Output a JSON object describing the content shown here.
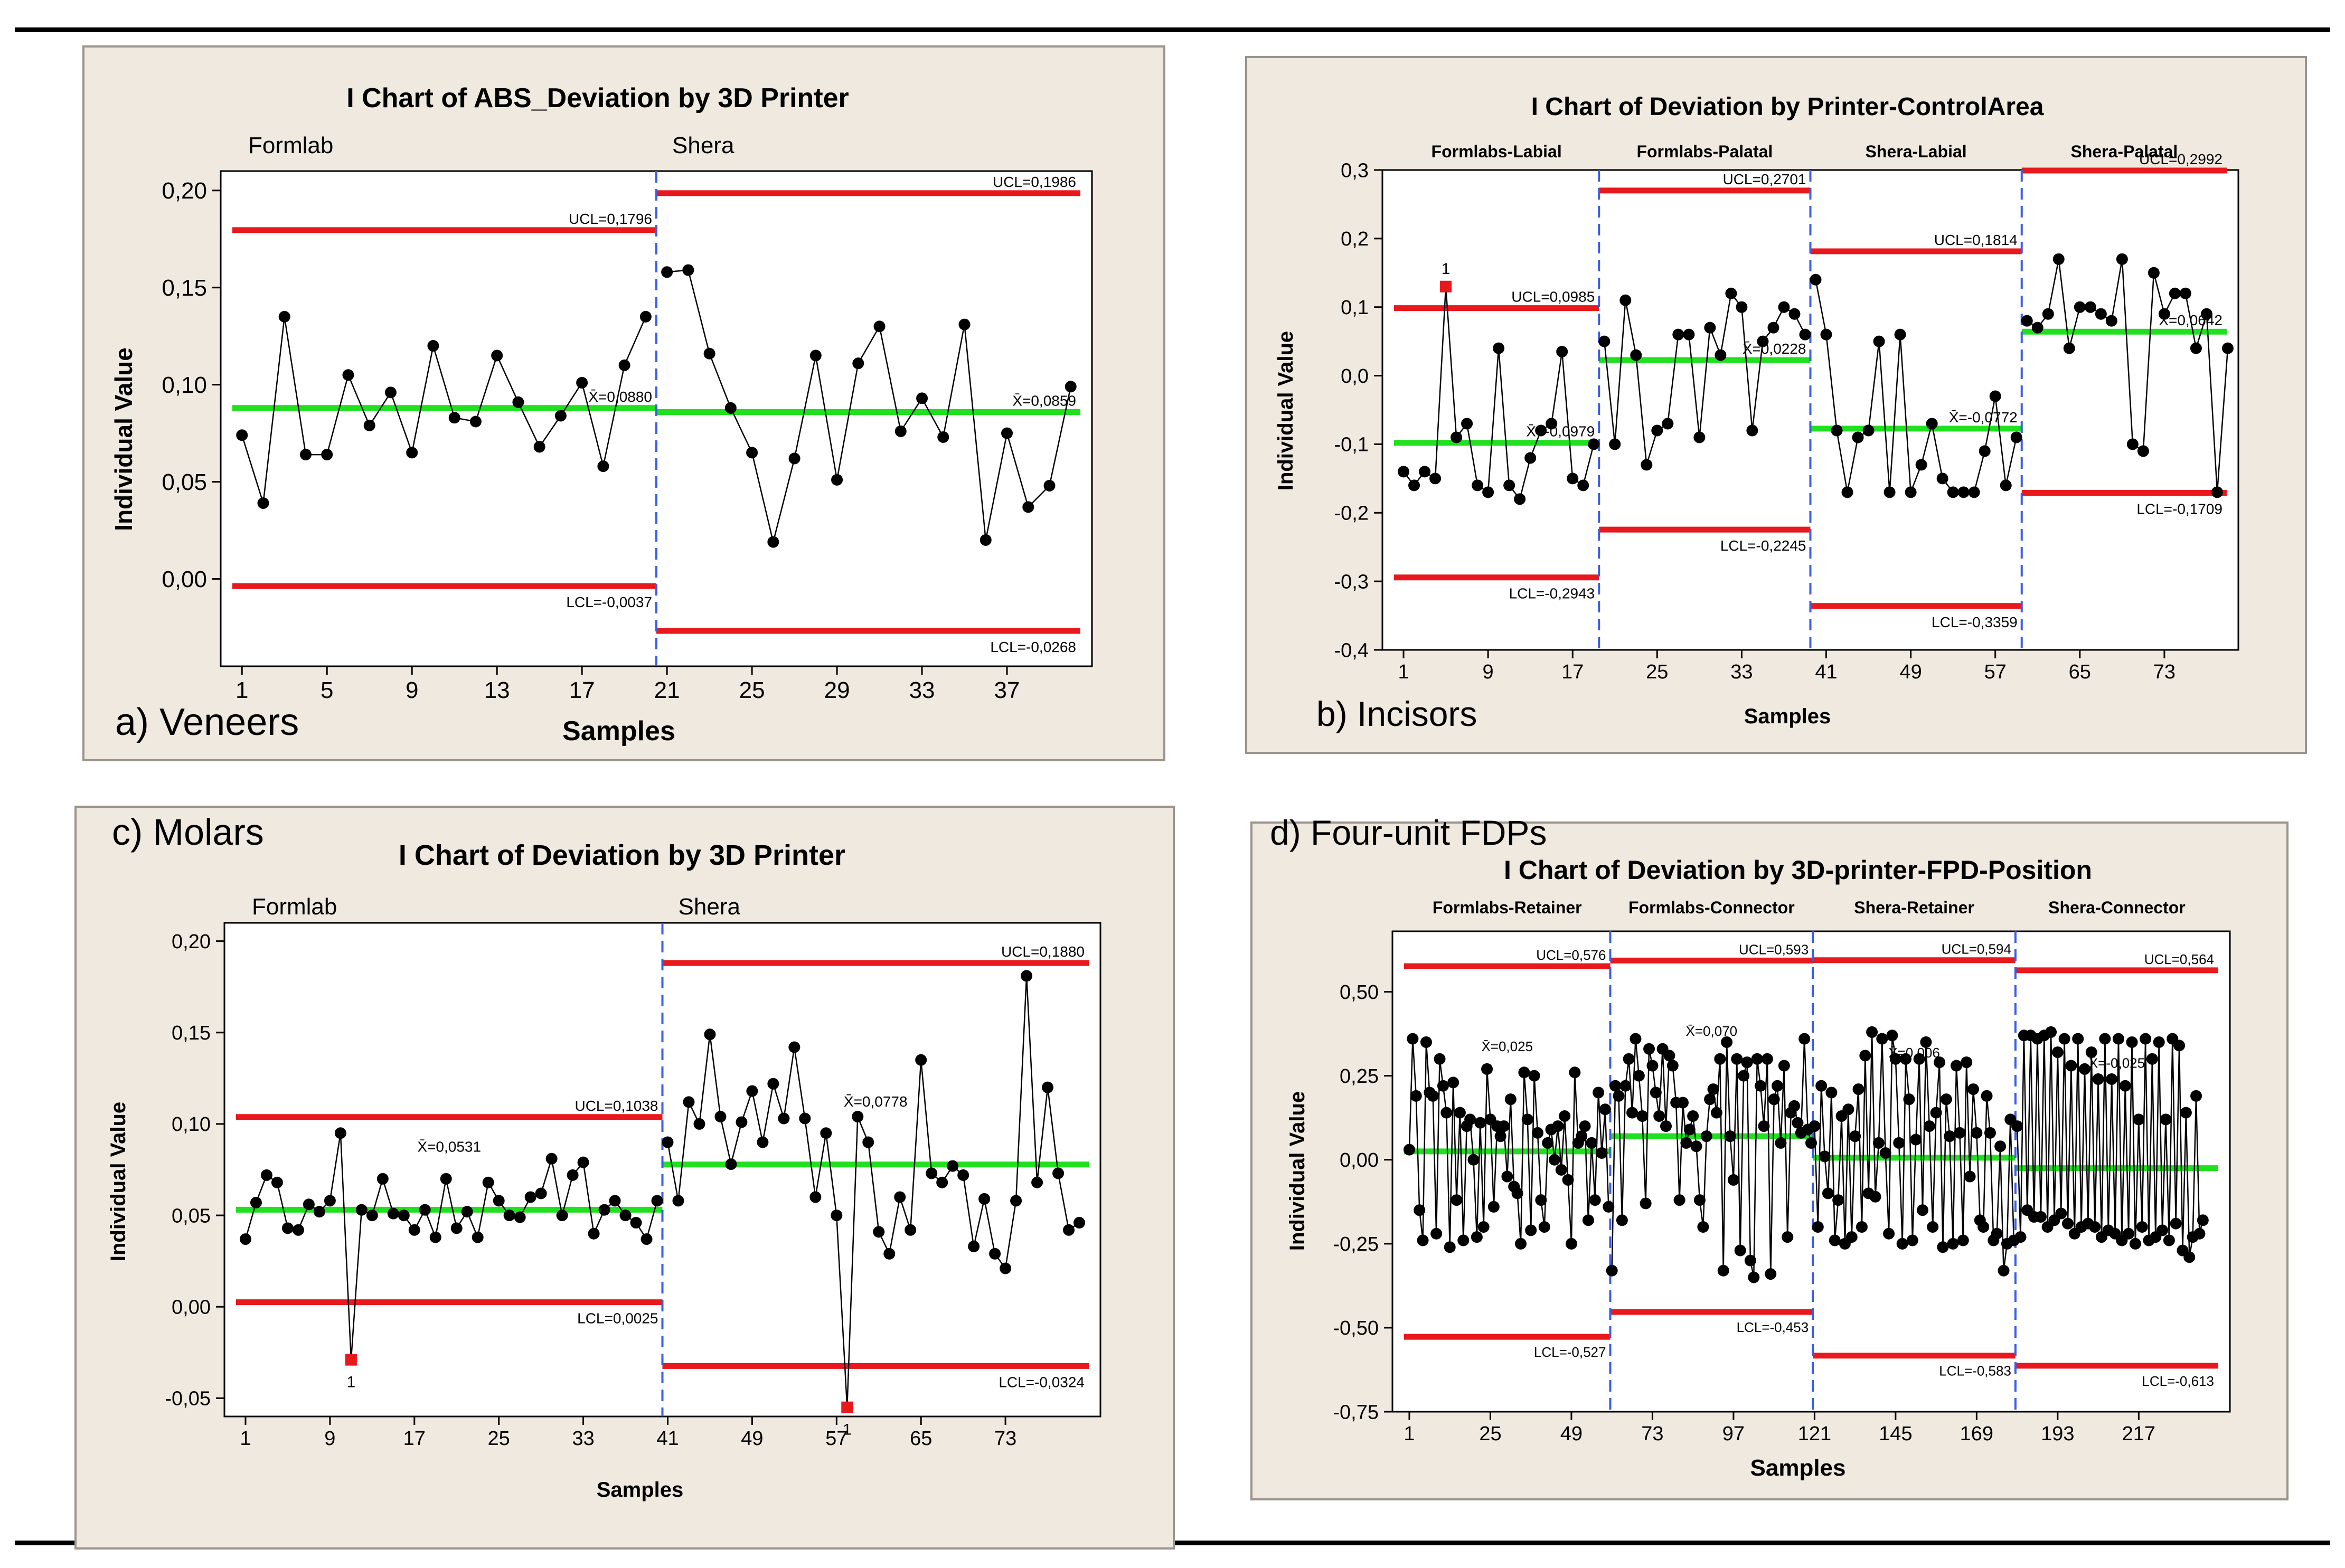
{
  "figure": {
    "panels": [
      {
        "caption": "a) Veneers"
      },
      {
        "caption": "b) Incisors"
      },
      {
        "caption": "c) Molars"
      },
      {
        "caption": "d) Four-unit FDPs"
      }
    ]
  },
  "chart_data": [
    {
      "type": "line",
      "title": "I Chart of ABS_Deviation by 3D Printer",
      "xlabel": "Samples",
      "ylabel": "Individual Value",
      "xlim": [
        0,
        41
      ],
      "ylim": [
        -0.045,
        0.21
      ],
      "yticks": [
        0.0,
        0.05,
        0.1,
        0.15,
        0.2
      ],
      "ytick_labels": [
        "0,00",
        "0,05",
        "0,10",
        "0,15",
        "0,20"
      ],
      "xticks": [
        1,
        5,
        9,
        13,
        17,
        21,
        25,
        29,
        33,
        37
      ],
      "groups": [
        {
          "name": "Formlab",
          "start": 1,
          "end": 20,
          "ucl": 0.1796,
          "mean": 0.088,
          "lcl": -0.0037,
          "ucl_label": "UCL=0,1796",
          "mean_label": "X̄=0,0880",
          "lcl_label": "LCL=-0,0037",
          "values": [
            0.074,
            0.039,
            0.135,
            0.064,
            0.064,
            0.105,
            0.079,
            0.096,
            0.065,
            0.12,
            0.083,
            0.081,
            0.115,
            0.091,
            0.068,
            0.084,
            0.101,
            0.058,
            0.11,
            0.135
          ]
        },
        {
          "name": "Shera",
          "start": 21,
          "end": 40,
          "ucl": 0.1986,
          "mean": 0.0859,
          "lcl": -0.0268,
          "ucl_label": "UCL=0,1986",
          "mean_label": "X̄=0,0859",
          "lcl_label": "LCL=-0,0268",
          "values": [
            0.158,
            0.159,
            0.116,
            0.088,
            0.065,
            0.019,
            0.062,
            0.115,
            0.051,
            0.111,
            0.13,
            0.076,
            0.093,
            0.073,
            0.131,
            0.02,
            0.075,
            0.037,
            0.048,
            0.099
          ]
        }
      ],
      "out_of_control": []
    },
    {
      "type": "line",
      "title": "I Chart of Deviation by Printer-ControlArea",
      "xlabel": "Samples",
      "ylabel": "Individual Value",
      "xlim": [
        -1,
        80
      ],
      "ylim": [
        -0.4,
        0.3
      ],
      "yticks": [
        -0.4,
        -0.3,
        -0.2,
        -0.1,
        0.0,
        0.1,
        0.2,
        0.3
      ],
      "ytick_labels": [
        "-0,4",
        "-0,3",
        "-0,2",
        "-0,1",
        "0,0",
        "0,1",
        "0,2",
        "0,3"
      ],
      "xticks": [
        1,
        9,
        17,
        25,
        33,
        41,
        49,
        57,
        65,
        73
      ],
      "groups": [
        {
          "name": "Formlabs-Labial",
          "start": 1,
          "end": 19,
          "ucl": 0.0985,
          "mean": -0.0979,
          "lcl": -0.2943,
          "ucl_label": "UCL=0,0985",
          "mean_label": "X̄=-0,0979",
          "lcl_label": "LCL=-0,2943",
          "values": [
            -0.14,
            -0.16,
            -0.14,
            -0.15,
            0.13,
            -0.09,
            -0.07,
            -0.16,
            -0.17,
            0.04,
            -0.16,
            -0.18,
            -0.12,
            -0.08,
            -0.07,
            0.035,
            -0.15,
            -0.16,
            -0.1
          ]
        },
        {
          "name": "Formlabs-Palatal",
          "start": 20,
          "end": 39,
          "ucl": 0.2701,
          "mean": 0.0228,
          "lcl": -0.2245,
          "ucl_label": "UCL=0,2701",
          "mean_label": "X̄=0,0228",
          "lcl_label": "LCL=-0,2245",
          "values": [
            0.05,
            -0.1,
            0.11,
            0.03,
            -0.13,
            -0.08,
            -0.07,
            0.06,
            0.06,
            -0.09,
            0.07,
            0.03,
            0.12,
            0.1,
            -0.08,
            0.05,
            0.07,
            0.1,
            0.09,
            0.06
          ]
        },
        {
          "name": "Shera-Labial",
          "start": 40,
          "end": 59,
          "ucl": 0.1814,
          "mean": -0.0772,
          "lcl": -0.3359,
          "ucl_label": "UCL=0,1814",
          "mean_label": "X̄=-0,0772",
          "lcl_label": "LCL=-0,3359",
          "values": [
            0.14,
            0.06,
            -0.08,
            -0.17,
            -0.09,
            -0.08,
            0.05,
            -0.17,
            0.06,
            -0.17,
            -0.13,
            -0.07,
            -0.15,
            -0.17,
            -0.17,
            -0.17,
            -0.11,
            -0.03,
            -0.16,
            -0.09
          ]
        },
        {
          "name": "Shera-Palatal",
          "start": 60,
          "end": 79,
          "ucl": 0.2992,
          "mean": 0.0642,
          "lcl": -0.1709,
          "ucl_label": "UCL=0,2992",
          "mean_label": "X̄=0,0642",
          "lcl_label": "LCL=-0,1709",
          "values": [
            0.08,
            0.07,
            0.09,
            0.17,
            0.04,
            0.1,
            0.1,
            0.09,
            0.08,
            0.17,
            -0.1,
            -0.11,
            0.15,
            0.09,
            0.12,
            0.12,
            0.04,
            0.09,
            -0.17,
            0.04
          ]
        }
      ],
      "out_of_control": [
        {
          "x": 5,
          "label": "1"
        }
      ]
    },
    {
      "type": "line",
      "title": "I Chart of Deviation by 3D Printer",
      "xlabel": "Samples",
      "ylabel": "Individual Value",
      "xlim": [
        -1,
        82
      ],
      "ylim": [
        -0.06,
        0.21
      ],
      "yticks": [
        -0.05,
        0.0,
        0.05,
        0.1,
        0.15,
        0.2
      ],
      "ytick_labels": [
        "-0,05",
        "0,00",
        "0,05",
        "0,10",
        "0,15",
        "0,20"
      ],
      "xticks": [
        1,
        9,
        17,
        25,
        33,
        41,
        49,
        57,
        65,
        73
      ],
      "groups": [
        {
          "name": "Formlab",
          "start": 1,
          "end": 40,
          "ucl": 0.1038,
          "mean": 0.0531,
          "lcl": 0.0025,
          "ucl_label": "UCL=0,1038",
          "mean_label": "X̄=0,0531",
          "lcl_label": "LCL=0,0025",
          "values": [
            0.037,
            0.057,
            0.072,
            0.068,
            0.043,
            0.042,
            0.056,
            0.052,
            0.058,
            0.095,
            -0.029,
            0.053,
            0.05,
            0.07,
            0.051,
            0.05,
            0.042,
            0.053,
            0.038,
            0.07,
            0.043,
            0.052,
            0.038,
            0.068,
            0.058,
            0.05,
            0.049,
            0.06,
            0.062,
            0.081,
            0.05,
            0.072,
            0.079,
            0.04,
            0.053,
            0.058,
            0.05,
            0.046,
            0.037,
            0.058
          ]
        },
        {
          "name": "Shera",
          "start": 41,
          "end": 80,
          "ucl": 0.188,
          "mean": 0.0778,
          "lcl": -0.0324,
          "ucl_label": "UCL=0,1880",
          "mean_label": "X̄=0,0778",
          "lcl_label": "LCL=-0,0324",
          "values": [
            0.09,
            0.058,
            0.112,
            0.1,
            0.149,
            0.104,
            0.078,
            0.101,
            0.118,
            0.09,
            0.122,
            0.103,
            0.142,
            0.103,
            0.06,
            0.095,
            0.05,
            -0.055,
            0.104,
            0.09,
            0.041,
            0.029,
            0.06,
            0.042,
            0.135,
            0.073,
            0.068,
            0.077,
            0.072,
            0.033,
            0.059,
            0.029,
            0.021,
            0.058,
            0.181,
            0.068,
            0.12,
            0.073,
            0.042,
            0.046
          ]
        }
      ],
      "out_of_control": [
        {
          "x": 11,
          "label": "1"
        },
        {
          "x": 58,
          "label": "1"
        }
      ]
    },
    {
      "type": "line",
      "title": "I Chart of Deviation by 3D-printer-FPD-Position",
      "xlabel": "Samples",
      "ylabel": "Individual Value",
      "xlim": [
        -4,
        244
      ],
      "ylim": [
        -0.75,
        0.68
      ],
      "yticks": [
        -0.75,
        -0.5,
        -0.25,
        0.0,
        0.25,
        0.5
      ],
      "ytick_labels": [
        "-0,75",
        "-0,50",
        "-0,25",
        "0,00",
        "0,25",
        "0,50"
      ],
      "xticks": [
        1,
        25,
        49,
        73,
        97,
        121,
        145,
        169,
        193,
        217
      ],
      "groups": [
        {
          "name": "Formlabs-Retainer",
          "start": 1,
          "end": 60,
          "ucl": 0.576,
          "mean": 0.025,
          "lcl": -0.527,
          "ucl_label": "UCL=0,576",
          "mean_label": "X̄=0,025",
          "lcl_label": "LCL=-0,527"
        },
        {
          "name": "Formlabs-Connector",
          "start": 61,
          "end": 120,
          "ucl": 0.593,
          "mean": 0.07,
          "lcl": -0.453,
          "ucl_label": "UCL=0,593",
          "mean_label": "X̄=0,070",
          "lcl_label": "LCL=-0,453"
        },
        {
          "name": "Shera-Retainer",
          "start": 121,
          "end": 180,
          "ucl": 0.594,
          "mean": 0.006,
          "lcl": -0.583,
          "ucl_label": "UCL=0,594",
          "mean_label": "X̄=0,006",
          "lcl_label": "LCL=-0,583"
        },
        {
          "name": "Shera-Connector",
          "start": 181,
          "end": 240,
          "ucl": 0.564,
          "mean": -0.025,
          "lcl": -0.613,
          "ucl_label": "UCL=0,564",
          "mean_label": "X̄=-0,025",
          "lcl_label": "LCL=-0,613"
        }
      ],
      "values": [
        0.03,
        0.36,
        0.19,
        -0.15,
        -0.24,
        0.35,
        0.2,
        0.19,
        -0.22,
        0.3,
        0.22,
        0.14,
        -0.26,
        0.23,
        -0.12,
        0.14,
        -0.24,
        0.1,
        0.12,
        0.0,
        -0.23,
        0.11,
        -0.2,
        0.27,
        0.12,
        -0.14,
        0.1,
        0.07,
        0.1,
        -0.05,
        0.18,
        -0.08,
        -0.1,
        -0.25,
        0.26,
        0.12,
        -0.21,
        0.25,
        0.08,
        -0.12,
        -0.2,
        0.05,
        0.09,
        0.0,
        0.1,
        -0.03,
        0.13,
        -0.06,
        -0.25,
        0.26,
        0.05,
        0.07,
        0.1,
        -0.18,
        0.05,
        -0.12,
        0.2,
        0.02,
        0.15,
        -0.14,
        -0.33,
        0.22,
        0.19,
        -0.18,
        0.22,
        0.3,
        0.14,
        0.36,
        0.25,
        0.13,
        -0.13,
        0.33,
        0.28,
        0.2,
        0.13,
        0.33,
        0.1,
        0.31,
        0.28,
        0.17,
        -0.12,
        0.17,
        0.05,
        0.09,
        0.13,
        0.04,
        -0.12,
        -0.2,
        0.07,
        0.18,
        0.21,
        0.14,
        0.3,
        -0.33,
        0.35,
        0.07,
        -0.06,
        0.3,
        -0.27,
        0.25,
        0.29,
        -0.3,
        -0.35,
        0.3,
        0.22,
        0.1,
        0.3,
        -0.34,
        0.18,
        0.22,
        0.05,
        0.28,
        -0.23,
        0.14,
        0.16,
        0.11,
        0.08,
        0.36,
        0.09,
        0.05,
        0.1,
        -0.2,
        0.22,
        0.01,
        -0.1,
        0.2,
        -0.24,
        -0.12,
        0.13,
        -0.25,
        0.15,
        -0.23,
        0.07,
        0.21,
        -0.2,
        0.31,
        -0.1,
        0.38,
        -0.11,
        0.05,
        0.36,
        0.02,
        -0.22,
        0.37,
        0.3,
        0.05,
        -0.25,
        0.3,
        0.18,
        -0.24,
        0.06,
        0.3,
        -0.15,
        0.35,
        0.1,
        -0.2,
        0.14,
        0.29,
        -0.26,
        0.18,
        0.07,
        -0.25,
        0.28,
        0.08,
        -0.24,
        0.29,
        -0.05,
        0.21,
        0.08,
        -0.18,
        -0.2,
        0.19,
        0.08,
        -0.24,
        -0.22,
        0.04,
        -0.33,
        -0.25,
        0.12,
        -0.24,
        0.1,
        -0.23,
        0.37,
        -0.15,
        0.37,
        -0.17,
        0.36,
        -0.17,
        0.37,
        -0.2,
        0.38,
        -0.18,
        0.32,
        -0.16,
        0.36,
        -0.19,
        0.28,
        -0.22,
        0.36,
        -0.2,
        0.27,
        -0.19,
        0.32,
        -0.2,
        0.24,
        -0.23,
        0.36,
        -0.21,
        0.24,
        -0.22,
        0.36,
        -0.24,
        0.22,
        -0.22,
        0.35,
        -0.25,
        0.12,
        -0.2,
        0.36,
        -0.24,
        0.3,
        -0.23,
        0.35,
        -0.21,
        0.12,
        -0.24,
        0.36,
        -0.19,
        0.34,
        -0.27,
        0.14,
        -0.29,
        -0.23,
        0.19,
        -0.22,
        -0.18
      ],
      "out_of_control": []
    }
  ]
}
